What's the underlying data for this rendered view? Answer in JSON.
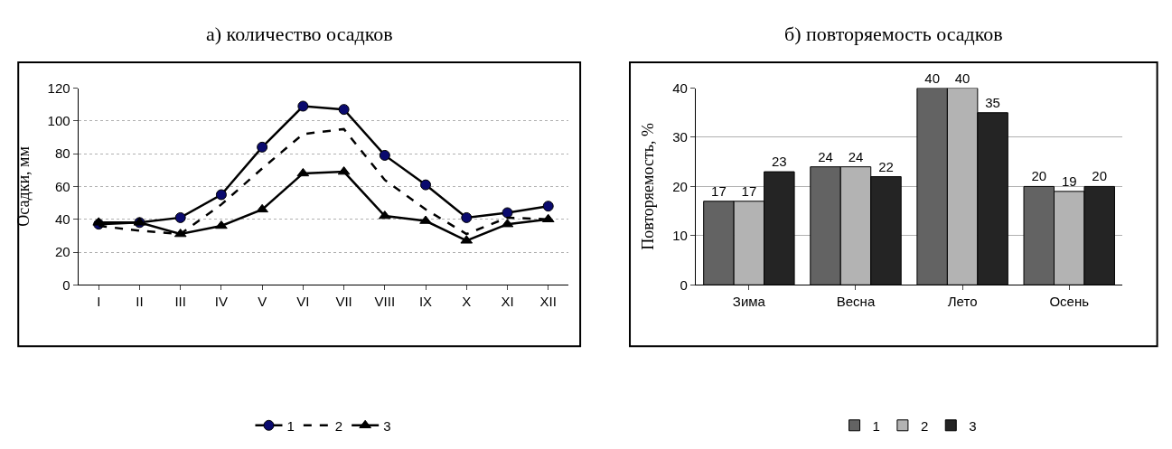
{
  "chart_data": [
    {
      "type": "line",
      "title": "а) количество осадков",
      "ylabel": "Осадки, мм",
      "categories": [
        "I",
        "II",
        "III",
        "IV",
        "V",
        "VI",
        "VII",
        "VIII",
        "IX",
        "X",
        "XI",
        "XII"
      ],
      "series": [
        {
          "name": "1",
          "color": "#000000",
          "marker": "circle",
          "line_style": "solid",
          "values": [
            37,
            38,
            41,
            55,
            84,
            109,
            107,
            79,
            61,
            41,
            44,
            48
          ]
        },
        {
          "name": "2",
          "color": "#000000",
          "marker": "none",
          "line_style": "dashed",
          "values": [
            36,
            33,
            31,
            49,
            71,
            92,
            95,
            64,
            46,
            31,
            41,
            40
          ]
        },
        {
          "name": "3",
          "color": "#000000",
          "marker": "triangle",
          "line_style": "solid",
          "values": [
            38,
            38,
            31,
            36,
            46,
            68,
            69,
            42,
            39,
            27,
            37,
            40
          ]
        }
      ],
      "ylim": [
        0,
        120
      ],
      "yticks": [
        0,
        20,
        40,
        60,
        80,
        100,
        120
      ],
      "grid": "y",
      "legend": "bottom"
    },
    {
      "type": "bar",
      "title": "б) повторяемость осадков",
      "ylabel": "Повторяемость, %",
      "categories": [
        "Зима",
        "Весна",
        "Лето",
        "Осень"
      ],
      "series": [
        {
          "name": "1",
          "color": "#636363",
          "values": [
            17,
            24,
            40,
            20
          ]
        },
        {
          "name": "2",
          "color": "#b3b3b3",
          "values": [
            17,
            24,
            40,
            19
          ]
        },
        {
          "name": "3",
          "color": "#242424",
          "values": [
            23,
            22,
            35,
            20
          ]
        }
      ],
      "ylim": [
        0,
        40
      ],
      "yticks": [
        0,
        10,
        20,
        30,
        40
      ],
      "grid": "y",
      "legend": "bottom",
      "data_labels": true
    }
  ]
}
